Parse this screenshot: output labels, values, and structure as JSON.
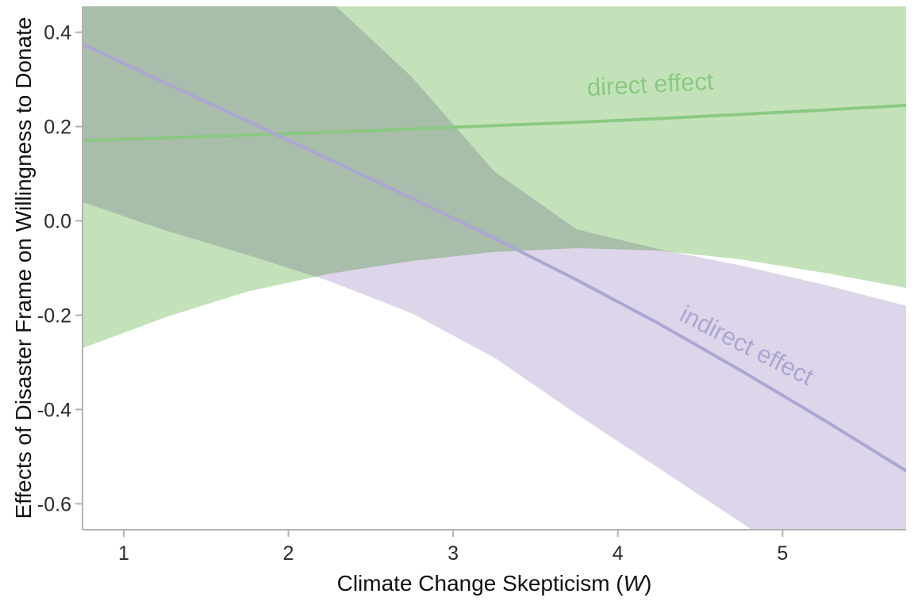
{
  "figure": {
    "background": "#ffffff"
  },
  "chart_data": {
    "type": "line",
    "title": "",
    "xlabel": {
      "prefix": "Climate Change Skepticism (",
      "var": "W",
      "suffix": ")"
    },
    "ylabel": "Effects of Disaster Frame on Willingness to Donate",
    "xlim": [
      0.75,
      5.75
    ],
    "ylim": [
      -0.655,
      0.455
    ],
    "xticks": [
      1,
      2,
      3,
      4,
      5
    ],
    "xtick_labels": [
      "1",
      "2",
      "3",
      "4",
      "5"
    ],
    "yticks": [
      -0.6,
      -0.4,
      -0.2,
      0.0,
      0.2,
      0.4
    ],
    "ytick_labels": [
      "-0.6",
      "-0.4",
      "-0.2",
      "0.0",
      "0.2",
      "0.4"
    ],
    "grid": false,
    "legend": "none",
    "axis_color": "#b3b3b3",
    "tick_label_color": "#2b2b2b",
    "x": [
      0.75,
      1.25,
      1.75,
      2.25,
      2.75,
      3.25,
      3.75,
      4.25,
      4.75,
      5.25,
      5.75
    ],
    "series": [
      {
        "name": "direct effect",
        "color": "#8bc983",
        "band_color": "#c3e2ba",
        "values": [
          0.17,
          0.176,
          0.182,
          0.188,
          0.195,
          0.202,
          0.209,
          0.217,
          0.226,
          0.235,
          0.245
        ],
        "band_lower": [
          -0.27,
          -0.205,
          -0.15,
          -0.112,
          -0.085,
          -0.066,
          -0.058,
          -0.063,
          -0.082,
          -0.11,
          -0.142
        ],
        "band_upper": [
          0.61,
          0.56,
          0.52,
          0.49,
          0.475,
          0.47,
          0.476,
          0.497,
          0.534,
          0.58,
          0.632
        ],
        "label": {
          "text": "direct effect",
          "x": 4.2,
          "y": 0.272,
          "rotation": -3
        }
      },
      {
        "name": "indirect effect",
        "color": "#aca6d2",
        "band_color": "#ddd5ea",
        "values": [
          0.375,
          0.293,
          0.212,
          0.13,
          0.048,
          -0.037,
          -0.125,
          -0.218,
          -0.318,
          -0.422,
          -0.53
        ],
        "band_lower": [
          0.04,
          -0.02,
          -0.072,
          -0.128,
          -0.196,
          -0.29,
          -0.41,
          -0.525,
          -0.64,
          -0.76,
          -0.88
        ],
        "band_upper": [
          0.71,
          0.625,
          0.545,
          0.468,
          0.305,
          0.105,
          -0.018,
          -0.06,
          -0.095,
          -0.135,
          -0.18
        ],
        "label": {
          "text": "indirect effect",
          "x": 4.76,
          "y": -0.28,
          "rotation": 27
        }
      }
    ]
  }
}
